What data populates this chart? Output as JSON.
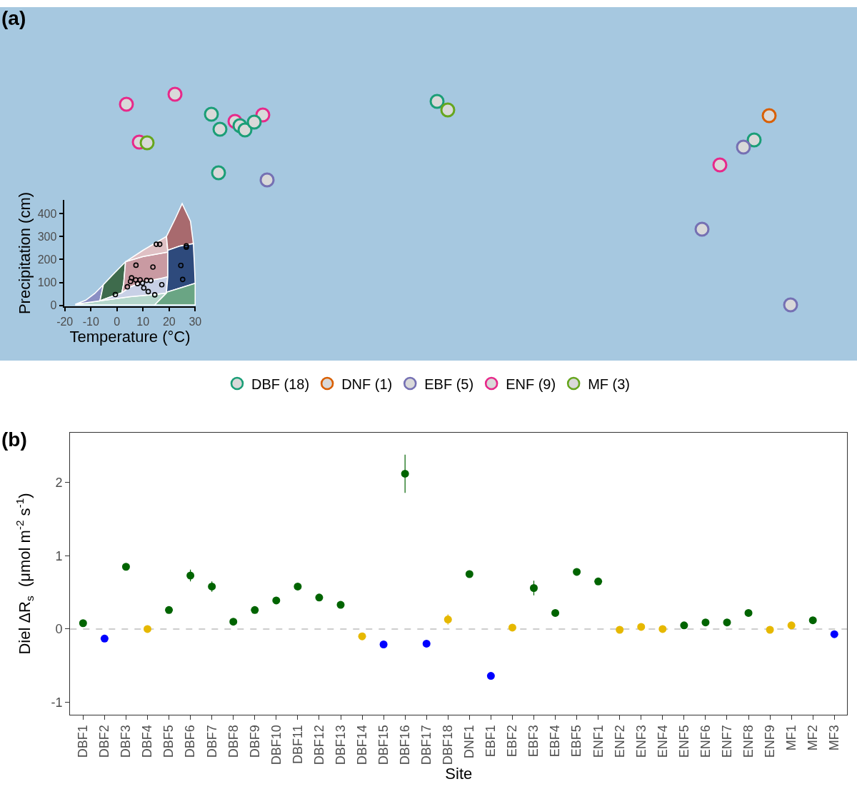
{
  "chart_data": [
    {
      "type": "other",
      "title": "(a)",
      "legend": "bottom",
      "series": [
        {
          "name": "DBF (18)",
          "color": "#1b9e77"
        },
        {
          "name": "DNF (1)",
          "color": "#d95f02"
        },
        {
          "name": "EBF (5)",
          "color": "#7570b3"
        },
        {
          "name": "ENF (9)",
          "color": "#e7298a"
        },
        {
          "name": "MF (3)",
          "color": "#66a61e"
        }
      ]
    },
    {
      "type": "scatter",
      "xlabel": "Temperature (°C)",
      "ylabel": "Precipitation (cm)",
      "marker": "circle",
      "xlim": [
        -20.3,
        30.3
      ],
      "xticks": [
        -20,
        -10,
        0,
        10,
        20,
        30
      ],
      "ylim": [
        -5,
        460
      ],
      "yticks": [
        0,
        100,
        200,
        300,
        400
      ],
      "x": [
        -0.6,
        4.0,
        5.2,
        5.6,
        7.3,
        7.2,
        7.9,
        8.9,
        9.8,
        10.3,
        11.4,
        12.0,
        13.0,
        13.8,
        14.5,
        15.1,
        16.4,
        17.2,
        24.5,
        25.2,
        26.6,
        26.6
      ],
      "series": [
        {
          "color": "#000000",
          "values": [
            47,
            81,
            104,
            120,
            175,
            111,
            95,
            111,
            97,
            76,
            109,
            60,
            108,
            167,
            46,
            266,
            266,
            90,
            174,
            113,
            259,
            253
          ]
        }
      ]
    },
    {
      "type": "scatter",
      "title": "(b)",
      "xlabel": "Site",
      "ylabel": "Diel ΔR$_{s}$  (μmol m$^{-2}$ s$^{-1}$)",
      "marker": "circle",
      "categories": [
        "DBF1",
        "DBF2",
        "DBF3",
        "DBF4",
        "DBF5",
        "DBF6",
        "DBF7",
        "DBF8",
        "DBF9",
        "DBF10",
        "DBF11",
        "DBF12",
        "DBF13",
        "DBF14",
        "DBF15",
        "DBF16",
        "DBF17",
        "DBF18",
        "DNF1",
        "EBF1",
        "EBF2",
        "EBF3",
        "EBF4",
        "EBF5",
        "ENF1",
        "ENF2",
        "ENF3",
        "ENF4",
        "ENF5",
        "ENF6",
        "ENF7",
        "ENF8",
        "ENF9",
        "MF1",
        "MF2",
        "MF3"
      ],
      "values": [
        0.08,
        -0.13,
        0.85,
        0.0,
        0.26,
        0.73,
        0.58,
        0.1,
        0.26,
        0.39,
        0.58,
        0.43,
        0.33,
        -0.1,
        -0.21,
        2.12,
        -0.2,
        0.13,
        0.75,
        -0.64,
        0.02,
        0.56,
        0.22,
        0.78,
        0.65,
        -0.01,
        0.03,
        0.0,
        0.05,
        0.09,
        0.09,
        0.22,
        -0.01,
        0.05,
        0.12,
        -0.07
      ],
      "colors": [
        "#006400",
        "#0000ff",
        "#006400",
        "#e6b800",
        "#006400",
        "#006400",
        "#006400",
        "#006400",
        "#006400",
        "#006400",
        "#006400",
        "#006400",
        "#006400",
        "#e6b800",
        "#0000ff",
        "#006400",
        "#0000ff",
        "#e6b800",
        "#006400",
        "#0000ff",
        "#e6b800",
        "#006400",
        "#006400",
        "#006400",
        "#006400",
        "#e6b800",
        "#e6b800",
        "#e6b800",
        "#006400",
        "#006400",
        "#006400",
        "#006400",
        "#e6b800",
        "#e6b800",
        "#006400",
        "#0000ff"
      ],
      "errors": [
        null,
        null,
        null,
        null,
        null,
        0.08,
        0.07,
        null,
        null,
        null,
        null,
        null,
        null,
        null,
        null,
        0.26,
        null,
        0.07,
        null,
        null,
        null,
        0.1,
        null,
        null,
        null,
        null,
        null,
        null,
        null,
        null,
        null,
        null,
        null,
        null,
        null,
        null
      ],
      "ylim": [
        -1.17,
        2.68
      ],
      "yticks": [
        -1,
        0,
        1,
        2
      ],
      "ref_lines": [
        {
          "axis": "y",
          "value": 0,
          "color": "#bebebe",
          "line_style": "dashed"
        }
      ]
    }
  ]
}
